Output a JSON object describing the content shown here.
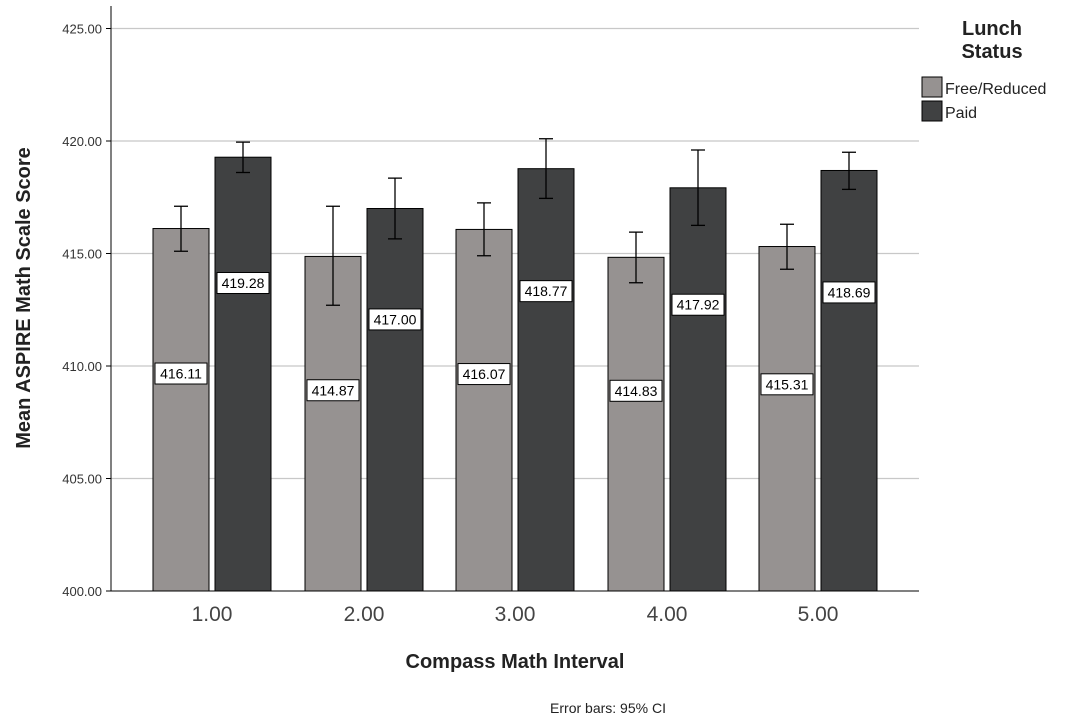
{
  "chart_data": {
    "type": "bar",
    "xlabel": "Compass Math Interval",
    "ylabel": "Mean ASPIRE Math Scale Score",
    "ylim": [
      400,
      426
    ],
    "yticks": [
      "400.00",
      "405.00",
      "410.00",
      "415.00",
      "420.00",
      "425.00"
    ],
    "ytick_values": [
      400,
      405,
      410,
      415,
      420,
      425
    ],
    "categories": [
      "1.00",
      "2.00",
      "3.00",
      "4.00",
      "5.00"
    ],
    "grid": "horizontal",
    "legend": {
      "title_lines": [
        "Lunch",
        "Status"
      ],
      "placement": "right"
    },
    "series": [
      {
        "name": "Free/Reduced",
        "color": "#969291",
        "values": [
          416.11,
          414.87,
          416.07,
          414.83,
          415.31
        ],
        "labels": [
          "416.11",
          "414.87",
          "416.07",
          "414.83",
          "415.31"
        ],
        "ci_low": [
          415.1,
          412.7,
          414.9,
          413.7,
          414.3
        ],
        "ci_high": [
          417.1,
          417.1,
          417.25,
          415.95,
          416.3
        ]
      },
      {
        "name": "Paid",
        "color": "#404142",
        "values": [
          419.28,
          417.0,
          418.77,
          417.92,
          418.69
        ],
        "labels": [
          "419.28",
          "417.00",
          "418.77",
          "417.92",
          "418.69"
        ],
        "ci_low": [
          418.6,
          415.65,
          417.45,
          416.25,
          417.85
        ],
        "ci_high": [
          419.95,
          418.35,
          420.1,
          419.6,
          419.5
        ]
      }
    ],
    "note": "Error bars: 95% CI"
  }
}
